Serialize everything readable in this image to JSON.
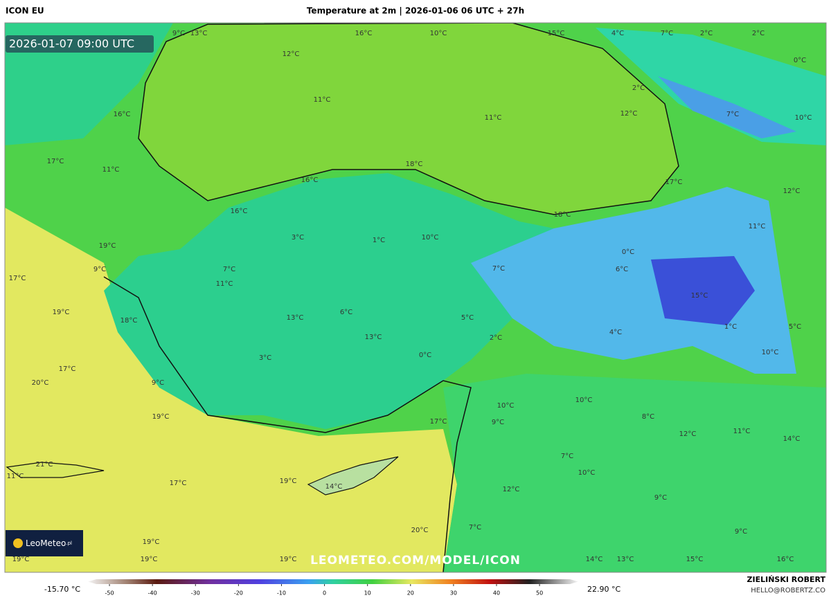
{
  "header": {
    "model": "ICON EU",
    "title": "Temperature at 2m | 2026-01-06 06 UTC + 27h"
  },
  "valid_time": "2026-01-07 09:00 UTC",
  "watermark": "LEOMETEO.COM/MODEL/ICON",
  "logo": {
    "text": "LeoMeteo",
    "suffix": ".pl"
  },
  "author": {
    "name": "ZIELIŃSKI ROBERT",
    "email": "HELLO@ROBERTZ.CO"
  },
  "legend": {
    "min_label": "-15.70 °C",
    "max_label": "22.90 °C",
    "range": [
      -55,
      59
    ],
    "ticks": [
      -50,
      -40,
      -30,
      -20,
      -10,
      0,
      10,
      20,
      30,
      40,
      50
    ]
  },
  "map_labels": [
    "9°C",
    "13°C",
    "16°C",
    "10°C",
    "15°C",
    "4°C",
    "7°C",
    "2°C",
    "2°C",
    "12°C",
    "0°C",
    "11°C",
    "11°C",
    "2°C",
    "12°C",
    "7°C",
    "10°C",
    "16°C",
    "17°C",
    "11°C",
    "18°C",
    "16°C",
    "17°C",
    "12°C",
    "16°C",
    "18°C",
    "11°C",
    "3°C",
    "1°C",
    "10°C",
    "19°C",
    "0°C",
    "7°C",
    "7°C",
    "6°C",
    "9°C",
    "17°C",
    "11°C",
    "15°C",
    "19°C",
    "6°C",
    "13°C",
    "5°C",
    "18°C",
    "1°C",
    "5°C",
    "4°C",
    "13°C",
    "2°C",
    "0°C",
    "3°C",
    "10°C",
    "17°C",
    "20°C",
    "9°C",
    "10°C",
    "10°C",
    "19°C",
    "17°C",
    "9°C",
    "8°C",
    "12°C",
    "11°C",
    "14°C",
    "7°C",
    "21°C",
    "11°C",
    "17°C",
    "19°C",
    "10°C",
    "14°C",
    "12°C",
    "9°C",
    "19°C",
    "20°C",
    "7°C",
    "9°C",
    "19°C",
    "19°C",
    "19°C",
    "14°C",
    "13°C",
    "15°C",
    "16°C"
  ]
}
